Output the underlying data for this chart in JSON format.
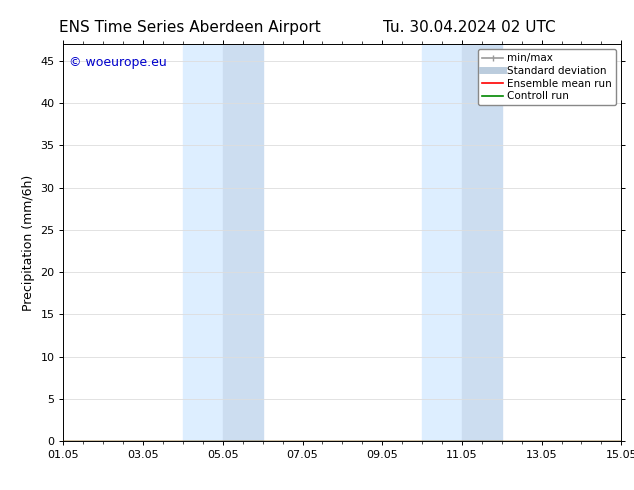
{
  "title_left": "ENS Time Series Aberdeen Airport",
  "title_right": "Tu. 30.04.2024 02 UTC",
  "ylabel": "Precipitation (mm/6h)",
  "xlabel": "",
  "xtick_labels": [
    "01.05",
    "03.05",
    "05.05",
    "07.05",
    "09.05",
    "11.05",
    "13.05",
    "15.05"
  ],
  "xtick_positions": [
    0,
    2,
    4,
    6,
    8,
    10,
    12,
    14
  ],
  "xlim": [
    0,
    14
  ],
  "ylim": [
    0,
    47
  ],
  "ytick_positions": [
    0,
    5,
    10,
    15,
    20,
    25,
    30,
    35,
    40,
    45
  ],
  "ytick_labels": [
    "0",
    "5",
    "10",
    "15",
    "20",
    "25",
    "30",
    "35",
    "40",
    "45"
  ],
  "shaded_bands": [
    {
      "x_start": 3.0,
      "x_end": 4.0,
      "color": "#ddeeff"
    },
    {
      "x_start": 4.0,
      "x_end": 5.0,
      "color": "#ccddf0"
    },
    {
      "x_start": 9.0,
      "x_end": 10.0,
      "color": "#ddeeff"
    },
    {
      "x_start": 10.0,
      "x_end": 11.0,
      "color": "#ccddf0"
    }
  ],
  "watermark_text": "© woeurope.eu",
  "watermark_color": "#0000cc",
  "watermark_fontsize": 9,
  "legend_entries": [
    {
      "label": "min/max",
      "color": "#999999",
      "lw": 1.2,
      "style": "line_with_caps"
    },
    {
      "label": "Standard deviation",
      "color": "#bbccdd",
      "lw": 5,
      "style": "line"
    },
    {
      "label": "Ensemble mean run",
      "color": "#ff0000",
      "lw": 1.2,
      "style": "line"
    },
    {
      "label": "Controll run",
      "color": "#008800",
      "lw": 1.2,
      "style": "line"
    }
  ],
  "background_color": "#ffffff",
  "plot_bg_color": "#ffffff",
  "grid_color": "#dddddd",
  "tick_fontsize": 8,
  "label_fontsize": 9,
  "title_fontsize": 11
}
